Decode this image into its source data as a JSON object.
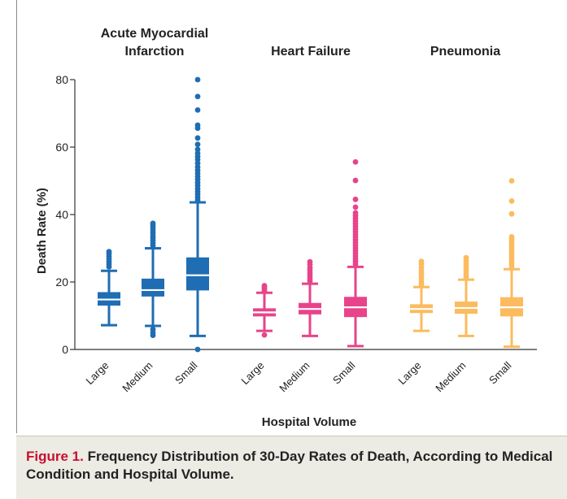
{
  "chart_data": {
    "type": "box",
    "title": "",
    "xlabel": "Hospital Volume",
    "ylabel": "Death Rate (%)",
    "ylim": [
      0,
      80
    ],
    "yticks": [
      0,
      20,
      40,
      60,
      80
    ],
    "grid": false,
    "groups": [
      {
        "name": "Acute Myocardial Infarction",
        "color": "#1f6db3",
        "boxes": [
          {
            "category": "Large",
            "whisker_low": 7.2,
            "q1": 13.0,
            "median": 14.8,
            "q3": 17.0,
            "whisker_high": 23.3,
            "outliers": [
              24.5,
              25.3,
              26.0,
              26.8,
              27.6,
              28.4,
              29.0
            ]
          },
          {
            "category": "Medium",
            "whisker_low": 7.0,
            "q1": 15.7,
            "median": 17.6,
            "q3": 21.0,
            "whisker_high": 30.0,
            "low_outliers": [
              4.2,
              5.0,
              6.0
            ],
            "outliers": [
              30.8,
              31.6,
              32.4,
              33.1,
              33.8,
              34.6,
              35.3,
              36.1,
              36.8,
              37.4
            ]
          },
          {
            "category": "Small",
            "whisker_low": 4.0,
            "q1": 17.5,
            "median": 22.0,
            "q3": 27.3,
            "whisker_high": 43.6,
            "low_outliers": [
              0.0
            ],
            "outliers": [
              44.3,
              45.1,
              46.0,
              46.8,
              47.7,
              48.6,
              49.5,
              50.4,
              51.3,
              52.2,
              53.1,
              54.1,
              55.2,
              56.3,
              57.2,
              58.2,
              59.3,
              60.8,
              62.7,
              65.6,
              66.5,
              71.0,
              75.0,
              80.0
            ]
          }
        ]
      },
      {
        "name": "Heart Failure",
        "color": "#e8438b",
        "boxes": [
          {
            "category": "Large",
            "whisker_low": 5.5,
            "q1": 9.8,
            "median": 11.0,
            "q3": 12.2,
            "whisker_high": 16.8,
            "low_outliers": [
              4.3
            ],
            "outliers": [
              17.3,
              17.9,
              18.4,
              18.9
            ]
          },
          {
            "category": "Medium",
            "whisker_low": 4.0,
            "q1": 10.4,
            "median": 12.0,
            "q3": 13.8,
            "whisker_high": 19.5,
            "outliers": [
              20.3,
              21.0,
              21.8,
              22.6,
              23.4,
              24.2,
              25.2,
              26.0
            ]
          },
          {
            "category": "Small",
            "whisker_low": 1.0,
            "q1": 9.6,
            "median": 12.5,
            "q3": 15.6,
            "whisker_high": 24.5,
            "outliers": [
              25.3,
              26.1,
              26.9,
              27.7,
              28.5,
              29.3,
              30.1,
              30.9,
              31.7,
              32.5,
              33.3,
              34.1,
              34.9,
              35.7,
              36.5,
              37.3,
              38.1,
              38.9,
              39.7,
              40.5,
              42.2,
              44.5,
              50.1,
              55.6
            ]
          }
        ]
      },
      {
        "name": "Pneumonia",
        "color": "#fbbb5e",
        "boxes": [
          {
            "category": "Large",
            "whisker_low": 5.5,
            "q1": 10.8,
            "median": 12.0,
            "q3": 13.4,
            "whisker_high": 18.5,
            "outliers": [
              19.3,
              20.1,
              20.9,
              21.7,
              22.5,
              23.4,
              24.3,
              25.3,
              26.1
            ]
          },
          {
            "category": "Medium",
            "whisker_low": 4.0,
            "q1": 10.6,
            "median": 12.3,
            "q3": 14.2,
            "whisker_high": 20.7,
            "outliers": [
              21.5,
              22.3,
              23.1,
              23.9,
              24.7,
              25.5,
              26.3,
              27.2
            ]
          },
          {
            "category": "Small",
            "whisker_low": 0.8,
            "q1": 9.8,
            "median": 12.5,
            "q3": 15.5,
            "whisker_high": 23.8,
            "outliers": [
              24.6,
              25.4,
              26.2,
              27.0,
              27.8,
              28.6,
              29.4,
              30.2,
              31.0,
              31.8,
              32.6,
              33.4,
              40.2,
              44.0,
              50.0
            ]
          }
        ]
      }
    ]
  },
  "caption": {
    "label": "Figure 1.",
    "text": "Frequency Distribution of 30-Day Rates of Death, According to Medical Condition and Hospital Volume."
  }
}
